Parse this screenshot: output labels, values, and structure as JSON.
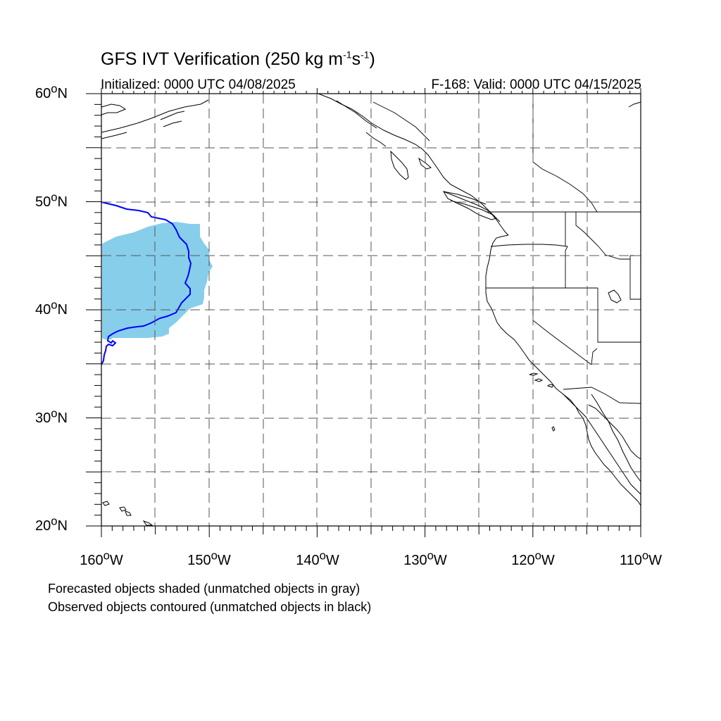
{
  "title": {
    "prefix": "GFS IVT Verification (250 kg m",
    "sup1": "-1",
    "mid": "s",
    "sup2": "-1",
    "suffix": ")"
  },
  "subtitle_left": "Initialized: 0000 UTC 04/08/2025",
  "subtitle_right": "F-168: Valid: 0000 UTC 04/15/2025",
  "latitude_labels": [
    {
      "deg": "60",
      "suffix": "N"
    },
    {
      "deg": "50",
      "suffix": "N"
    },
    {
      "deg": "40",
      "suffix": "N"
    },
    {
      "deg": "30",
      "suffix": "N"
    },
    {
      "deg": "20",
      "suffix": "N"
    }
  ],
  "longitude_labels": [
    {
      "deg": "160",
      "suffix": "W"
    },
    {
      "deg": "150",
      "suffix": "W"
    },
    {
      "deg": "140",
      "suffix": "W"
    },
    {
      "deg": "130",
      "suffix": "W"
    },
    {
      "deg": "120",
      "suffix": "W"
    },
    {
      "deg": "110",
      "suffix": "W"
    }
  ],
  "footnotes": {
    "line1": "Forecasted objects shaded (unmatched objects in gray)",
    "line2": "Observed objects contoured (unmatched objects in black)"
  },
  "map": {
    "lon_range": [
      -160,
      -110
    ],
    "lat_range": [
      20,
      60
    ],
    "grid_interval_deg": 5,
    "grid_style": "dashed",
    "colors": {
      "forecast_fill": "#87ceeb",
      "observed_contour": "#0000ff",
      "coastline": "#000000",
      "grid": "#555555"
    }
  }
}
